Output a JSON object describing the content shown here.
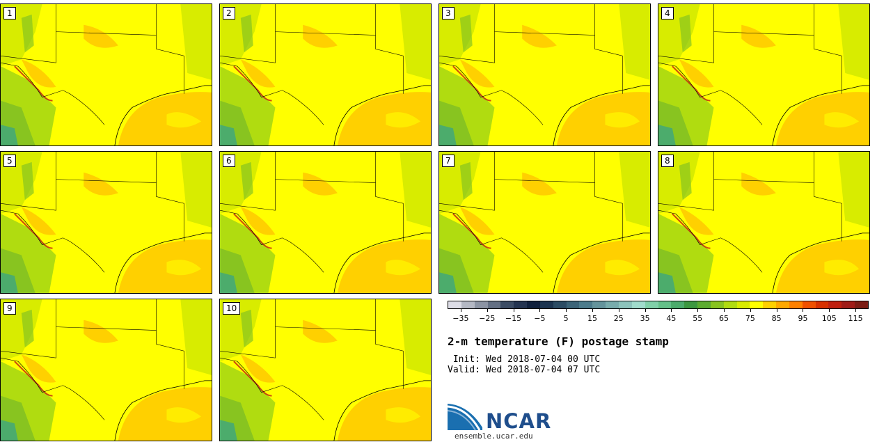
{
  "stamps": [
    {
      "number": "1"
    },
    {
      "number": "2"
    },
    {
      "number": "3"
    },
    {
      "number": "4"
    },
    {
      "number": "5"
    },
    {
      "number": "6"
    },
    {
      "number": "7"
    },
    {
      "number": "8"
    },
    {
      "number": "9"
    },
    {
      "number": "10"
    }
  ],
  "colorbar": {
    "colors": [
      "#dcdce6",
      "#b4b8c4",
      "#8c94a4",
      "#647084",
      "#3c4c64",
      "#243450",
      "#10203c",
      "#1c3450",
      "#2c4c64",
      "#3c6478",
      "#4c7c8c",
      "#64949c",
      "#78acac",
      "#8cc4bc",
      "#a0dccc",
      "#80d0a8",
      "#64c088",
      "#4cac6c",
      "#3c9840",
      "#5cac30",
      "#88c420",
      "#b0dc10",
      "#d8ec00",
      "#ffff00",
      "#ffd000",
      "#ffa800",
      "#ff8000",
      "#f05000",
      "#d83000",
      "#c02010",
      "#a01c18",
      "#7c1c14"
    ],
    "tick_labels": [
      "−35",
      "−25",
      "−15",
      "−5",
      "5",
      "15",
      "25",
      "35",
      "45",
      "55",
      "65",
      "75",
      "85",
      "95",
      "105",
      "115"
    ],
    "range": [
      -40,
      120
    ]
  },
  "info": {
    "title": "2-m temperature (F) postage stamp",
    "init": " Init: Wed 2018-07-04 00 UTC",
    "valid": "Valid: Wed 2018-07-04 07 UTC"
  },
  "logo": {
    "text": "NCAR",
    "site": "ensemble.ucar.edu",
    "brand_color": "#1f4e8c"
  },
  "map_colors": {
    "base": "#ffff00",
    "warm": "#ffd000",
    "hot": "#ffa800",
    "cool": "#d8ec00",
    "cooler": "#b0dc10",
    "green": "#88c420",
    "dark_green": "#4cac6c",
    "gulf": "#ffd000",
    "ridge": "#c02010"
  }
}
